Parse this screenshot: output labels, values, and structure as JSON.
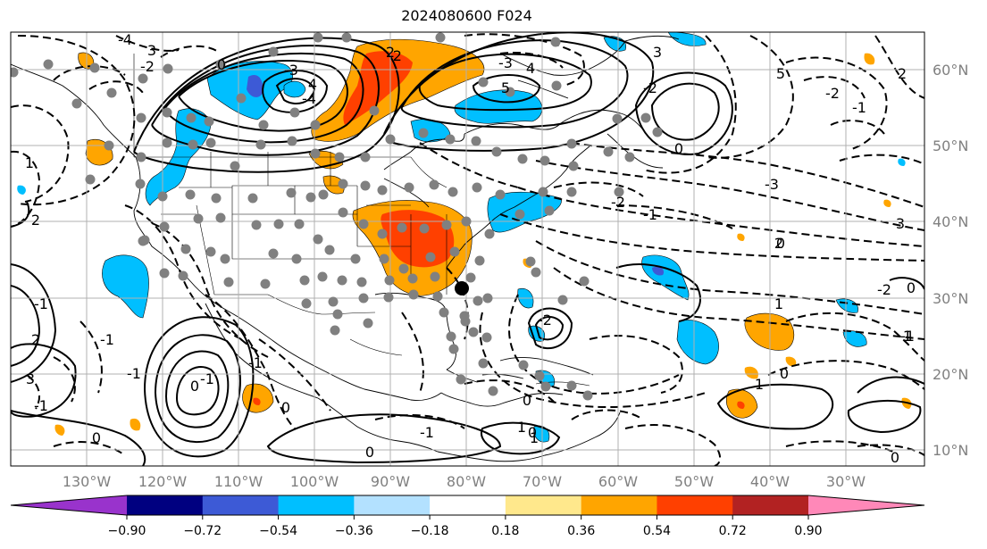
{
  "title": "2024080600 F024",
  "lat_labels": [
    "60°N",
    "50°N",
    "40°N",
    "30°N",
    "20°N",
    "10°N"
  ],
  "lon_labels": [
    "130°W",
    "120°W",
    "110°W",
    "100°W",
    "90°W",
    "80°W",
    "70°W",
    "60°W",
    "50°W",
    "40°W",
    "30°W"
  ],
  "colorbar": {
    "colors": [
      "#9933cc",
      "#000080",
      "#3d5ad6",
      "#00bfff",
      "#b3e1ff",
      "#ffffff",
      "#ffe88c",
      "#ffa500",
      "#ff4000",
      "#b22222",
      "#ff88b8"
    ],
    "ticks": [
      "−0.90",
      "−0.72",
      "−0.54",
      "−0.36",
      "−0.18",
      "0.18",
      "0.36",
      "0.54",
      "0.72",
      "0.90"
    ]
  },
  "contour_labels": [
    "-4",
    "3",
    "-2",
    "0",
    "-3",
    "4",
    "-4",
    "2",
    "4",
    "-3",
    "5",
    "-2",
    "3",
    "-2",
    "0",
    "-2",
    "-1",
    "2",
    "5",
    "-3",
    "-2",
    "-1",
    "2",
    "3",
    "-2",
    "-2",
    "1",
    "-1",
    "0",
    "2",
    "1",
    "-1",
    "2",
    "3",
    "-1",
    "-1",
    "-1",
    "0",
    "-1",
    "0",
    "-1",
    "0",
    "1",
    "0",
    "0",
    "1",
    "1",
    "0",
    "1",
    "0",
    "0",
    "-1",
    "0"
  ]
}
